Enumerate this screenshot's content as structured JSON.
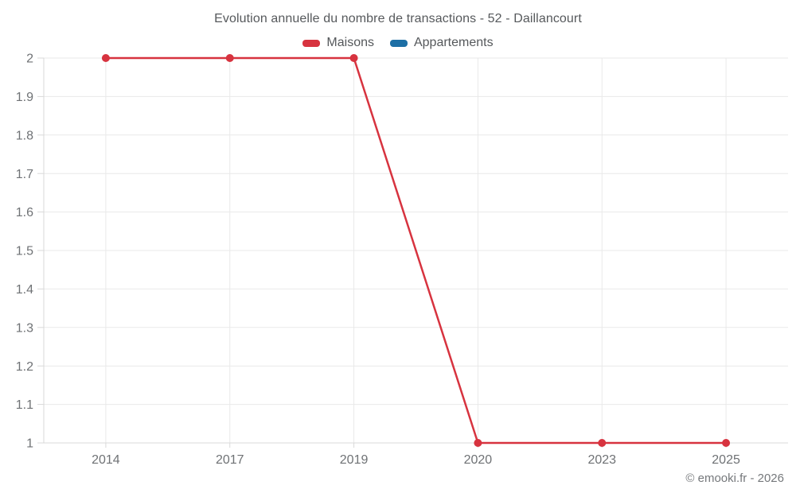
{
  "page": {
    "title": "Evolution annuelle du nombre de transactions - 52 - Daillancourt",
    "footer": "© emooki.fr - 2026"
  },
  "colors": {
    "grid": "#e9e9e9",
    "axis": "#d9d9d9",
    "tick": "#d9d9d9",
    "axis_label": "#6f7275"
  },
  "chart_data": {
    "type": "line",
    "title": "Evolution annuelle du nombre de transactions - 52 - Daillancourt",
    "categories": [
      "2014",
      "2017",
      "2019",
      "2020",
      "2023",
      "2025"
    ],
    "series": [
      {
        "name": "Maisons",
        "color": "#d7333f",
        "values": [
          2,
          2,
          2,
          1,
          1,
          1
        ]
      },
      {
        "name": "Appartements",
        "color": "#1d6fa5",
        "values": []
      }
    ],
    "xlabel": "",
    "ylabel": "",
    "ylim": [
      1,
      2
    ],
    "y_ticks": [
      {
        "value": 2,
        "label": "2"
      },
      {
        "value": 1.9,
        "label": "1.9"
      },
      {
        "value": 1.8,
        "label": "1.8"
      },
      {
        "value": 1.7,
        "label": "1.7"
      },
      {
        "value": 1.6,
        "label": "1.6"
      },
      {
        "value": 1.5,
        "label": "1.5"
      },
      {
        "value": 1.4,
        "label": "1.4"
      },
      {
        "value": 1.3,
        "label": "1.3"
      },
      {
        "value": 1.2,
        "label": "1.2"
      },
      {
        "value": 1.1,
        "label": "1.1"
      },
      {
        "value": 1,
        "label": "1"
      }
    ],
    "grid": true,
    "legend_position": "top"
  }
}
